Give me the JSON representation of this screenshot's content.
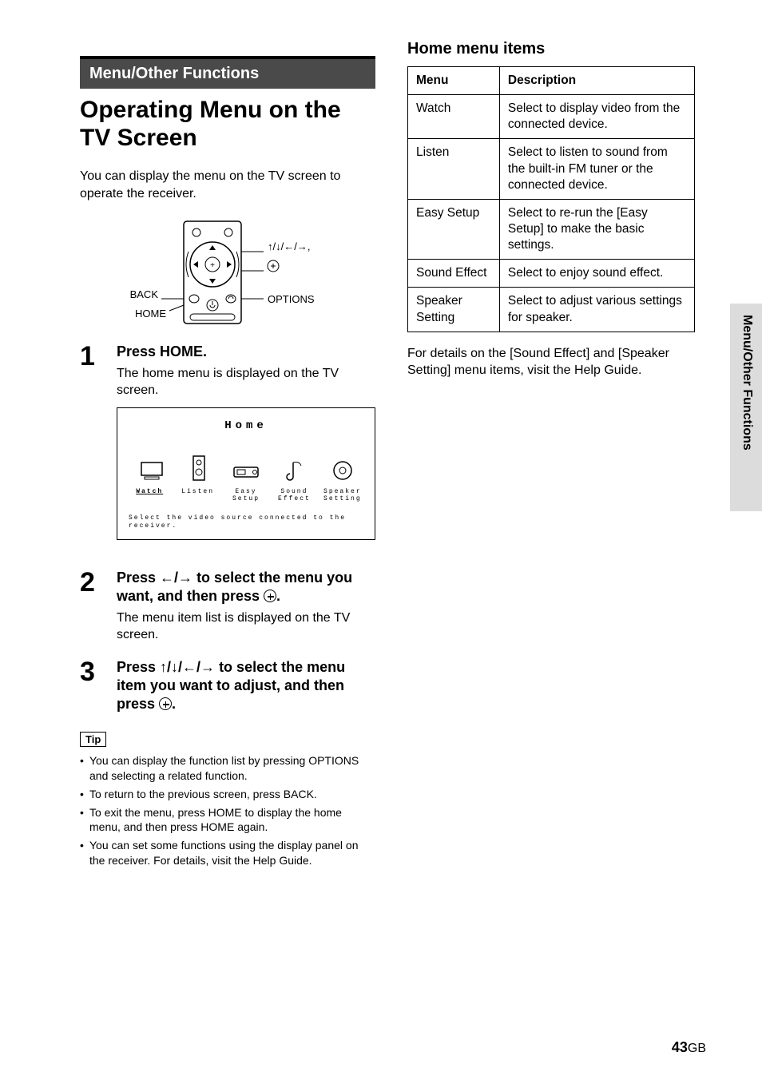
{
  "section_banner": "Menu/Other Functions",
  "page_title": "Operating Menu on the TV Screen",
  "intro": "You can display the menu on the TV screen to operate the receiver.",
  "remote_labels": {
    "arrows": "↑/↓/←/→,",
    "back": "BACK",
    "home": "HOME",
    "options": "OPTIONS"
  },
  "steps": [
    {
      "num": "1",
      "title": "Press HOME.",
      "desc": "The home menu is displayed on the TV screen."
    },
    {
      "num": "2",
      "title_pre": "Press ",
      "title_mid": "←/→",
      "title_post": " to select the menu you want, and then press ",
      "desc": "The menu item list is displayed on the TV screen."
    },
    {
      "num": "3",
      "title_pre": "Press ",
      "title_mid": "↑/↓/←/→",
      "title_post": " to select the menu item you want to adjust, and then press "
    }
  ],
  "home_screen": {
    "title": "Home",
    "items": [
      "Watch",
      "Listen",
      "Easy\nSetup",
      "Sound\nEffect",
      "Speaker\nSetting"
    ],
    "footer": "Select the video source connected to the receiver."
  },
  "tip_label": "Tip",
  "tips": [
    "You can display the function list by pressing OPTIONS and selecting a related function.",
    "To return to the previous screen, press BACK.",
    "To exit the menu, press HOME to display the home menu, and then press HOME again.",
    "You can set some functions using the display panel on the receiver. For details, visit the Help Guide."
  ],
  "right": {
    "heading": "Home menu items",
    "th1": "Menu",
    "th2": "Description",
    "rows": [
      [
        "Watch",
        "Select to display video from the connected device."
      ],
      [
        "Listen",
        "Select to listen to sound from the built-in FM tuner or the connected device."
      ],
      [
        "Easy Setup",
        "Select to re-run the [Easy Setup] to make the basic settings."
      ],
      [
        "Sound Effect",
        "Select to enjoy sound effect."
      ],
      [
        "Speaker Setting",
        "Select to adjust various settings for speaker."
      ]
    ],
    "footnote": "For details on the [Sound Effect] and [Speaker Setting] menu items, visit the Help Guide."
  },
  "side_tab": "Menu/Other Functions",
  "page_number": "43",
  "page_suffix": "GB",
  "colors": {
    "banner_bg": "#4a4a4a",
    "side_bg": "#dcdcdc",
    "text": "#000000",
    "bg": "#ffffff"
  }
}
